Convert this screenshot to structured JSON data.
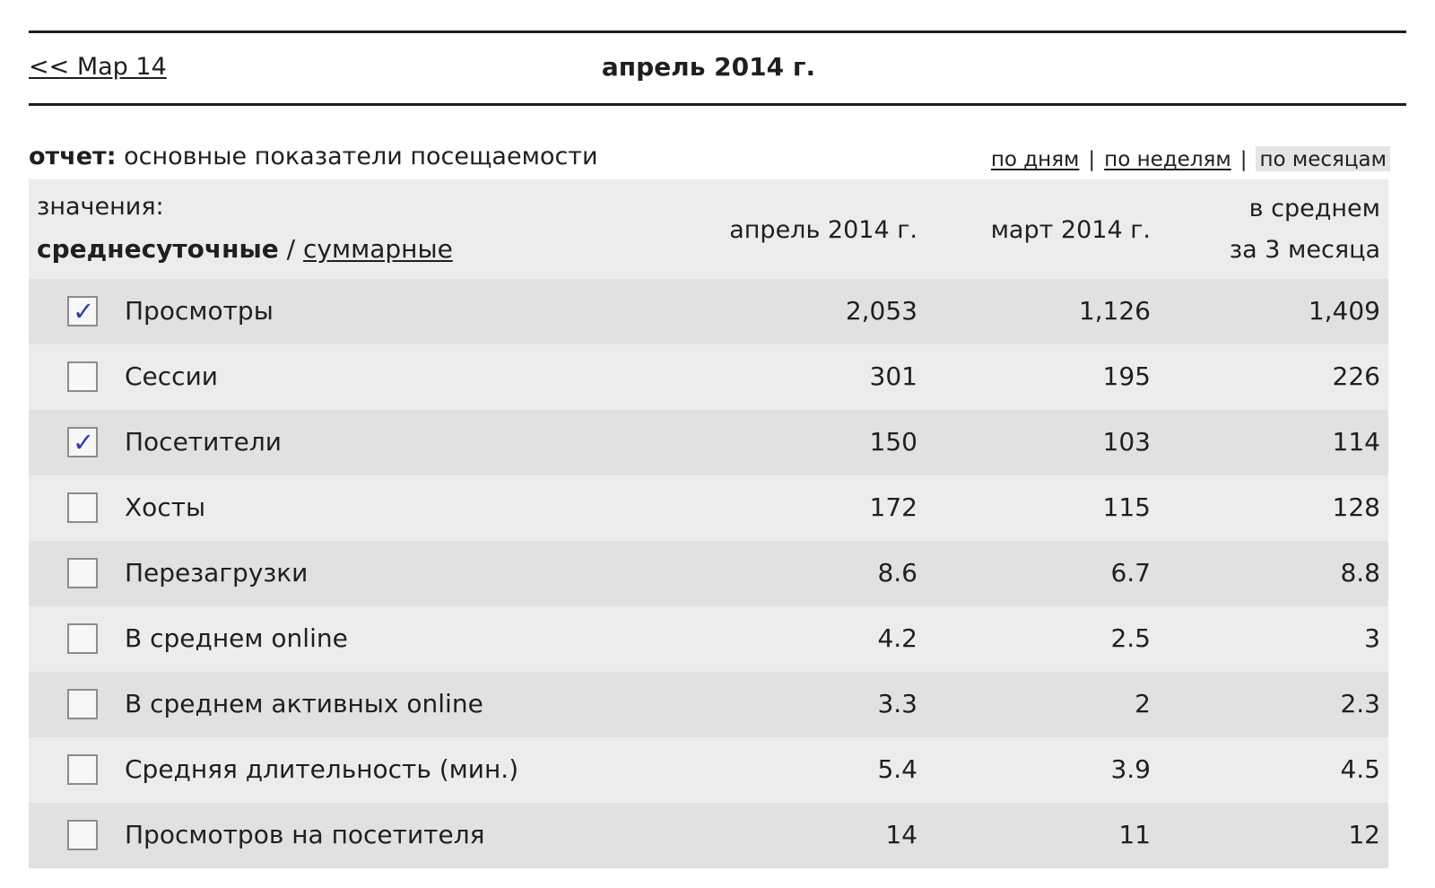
{
  "nav": {
    "prev_label": "<< Мар 14",
    "current_period": "апрель 2014 г."
  },
  "report": {
    "label": "отчет:",
    "name": "основные показатели посещаемости"
  },
  "period_switch": {
    "days": "по дням",
    "weeks": "по неделям",
    "months": "по месяцам",
    "separator": "|",
    "active": "months"
  },
  "table": {
    "values_label": "значения:",
    "mode_current": "среднесуточные",
    "mode_separator": " / ",
    "mode_alternative": "суммарные",
    "columns": [
      "апрель 2014 г.",
      "март 2014 г.",
      "в среднем",
      "за 3 месяца"
    ],
    "rows": [
      {
        "name": "Просмотры",
        "checked": true,
        "v1": "2,053",
        "v2": "1,126",
        "v3": "1,409"
      },
      {
        "name": "Сессии",
        "checked": false,
        "v1": "301",
        "v2": "195",
        "v3": "226"
      },
      {
        "name": "Посетители",
        "checked": true,
        "v1": "150",
        "v2": "103",
        "v3": "114"
      },
      {
        "name": "Хосты",
        "checked": false,
        "v1": "172",
        "v2": "115",
        "v3": "128"
      },
      {
        "name": "Перезагрузки",
        "checked": false,
        "v1": "8.6",
        "v2": "6.7",
        "v3": "8.8"
      },
      {
        "name": "В среднем online",
        "checked": false,
        "v1": "4.2",
        "v2": "2.5",
        "v3": "3"
      },
      {
        "name": "В среднем активных online",
        "checked": false,
        "v1": "3.3",
        "v2": "2",
        "v3": "2.3"
      },
      {
        "name": "Средняя длительность (мин.)",
        "checked": false,
        "v1": "5.4",
        "v2": "3.9",
        "v3": "4.5"
      },
      {
        "name": "Просмотров на посетителя",
        "checked": false,
        "v1": "14",
        "v2": "11",
        "v3": "12"
      }
    ]
  },
  "colors": {
    "row_dark": "#e1e1e1",
    "row_light": "#ececec",
    "check_mark": "#2c3bb2"
  }
}
